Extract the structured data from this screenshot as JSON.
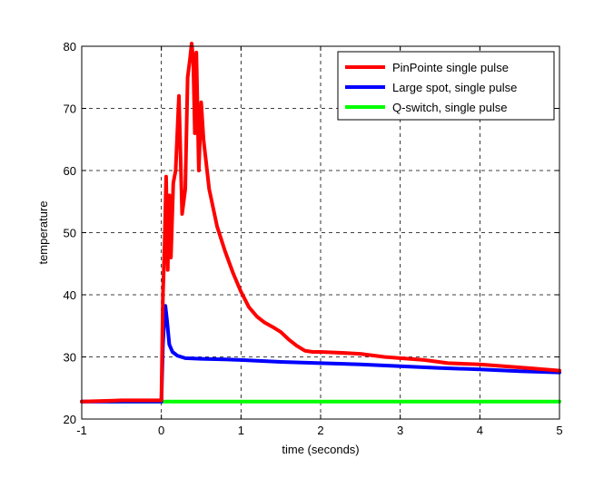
{
  "chart_data": {
    "type": "line",
    "title": "",
    "xlabel": "time (seconds)",
    "ylabel": "temperature",
    "xlim": [
      -1,
      5
    ],
    "ylim": [
      20,
      80
    ],
    "xticks": [
      -1,
      0,
      1,
      2,
      3,
      4,
      5
    ],
    "yticks": [
      20,
      30,
      40,
      50,
      60,
      70,
      80
    ],
    "grid": true,
    "legend_position": "top-right",
    "series": [
      {
        "name": "PinPointe single pulse",
        "color": "#ff0000",
        "points": [
          [
            -1,
            22.8
          ],
          [
            -0.5,
            23.0
          ],
          [
            0,
            23.0
          ],
          [
            0.02,
            40
          ],
          [
            0.04,
            48
          ],
          [
            0.06,
            59
          ],
          [
            0.08,
            44
          ],
          [
            0.1,
            56
          ],
          [
            0.12,
            46
          ],
          [
            0.15,
            58
          ],
          [
            0.18,
            60
          ],
          [
            0.22,
            72
          ],
          [
            0.26,
            53
          ],
          [
            0.3,
            57
          ],
          [
            0.33,
            75
          ],
          [
            0.36,
            78
          ],
          [
            0.38,
            81
          ],
          [
            0.4,
            78
          ],
          [
            0.42,
            66
          ],
          [
            0.44,
            79
          ],
          [
            0.47,
            60
          ],
          [
            0.5,
            71
          ],
          [
            0.53,
            65
          ],
          [
            0.6,
            57
          ],
          [
            0.7,
            51
          ],
          [
            0.8,
            47
          ],
          [
            0.9,
            43.5
          ],
          [
            1.0,
            40.5
          ],
          [
            1.1,
            38
          ],
          [
            1.2,
            36.5
          ],
          [
            1.3,
            35.5
          ],
          [
            1.4,
            34.8
          ],
          [
            1.5,
            34.0
          ],
          [
            1.6,
            32.8
          ],
          [
            1.7,
            31.8
          ],
          [
            1.8,
            31.0
          ],
          [
            1.9,
            30.8
          ],
          [
            2.0,
            30.8
          ],
          [
            2.2,
            30.7
          ],
          [
            2.5,
            30.5
          ],
          [
            2.8,
            30.0
          ],
          [
            3.0,
            29.8
          ],
          [
            3.3,
            29.5
          ],
          [
            3.6,
            29.0
          ],
          [
            4.0,
            28.8
          ],
          [
            4.3,
            28.5
          ],
          [
            4.6,
            28.2
          ],
          [
            5.0,
            27.8
          ]
        ]
      },
      {
        "name": "Large spot, single pulse",
        "color": "#0000ff",
        "points": [
          [
            -1,
            22.8
          ],
          [
            -0.5,
            22.8
          ],
          [
            0,
            22.8
          ],
          [
            0.02,
            32
          ],
          [
            0.04,
            37
          ],
          [
            0.05,
            38.2
          ],
          [
            0.07,
            36
          ],
          [
            0.1,
            32
          ],
          [
            0.14,
            30.8
          ],
          [
            0.2,
            30.2
          ],
          [
            0.3,
            29.8
          ],
          [
            0.5,
            29.7
          ],
          [
            0.8,
            29.6
          ],
          [
            1.0,
            29.5
          ],
          [
            1.5,
            29.2
          ],
          [
            2.0,
            29.0
          ],
          [
            2.5,
            28.8
          ],
          [
            3.0,
            28.5
          ],
          [
            3.5,
            28.2
          ],
          [
            4.0,
            28.0
          ],
          [
            4.5,
            27.7
          ],
          [
            5.0,
            27.5
          ]
        ]
      },
      {
        "name": "Q-switch, single pulse",
        "color": "#00ff00",
        "points": [
          [
            -0.65,
            22.8
          ],
          [
            5.0,
            22.8
          ]
        ]
      }
    ]
  }
}
